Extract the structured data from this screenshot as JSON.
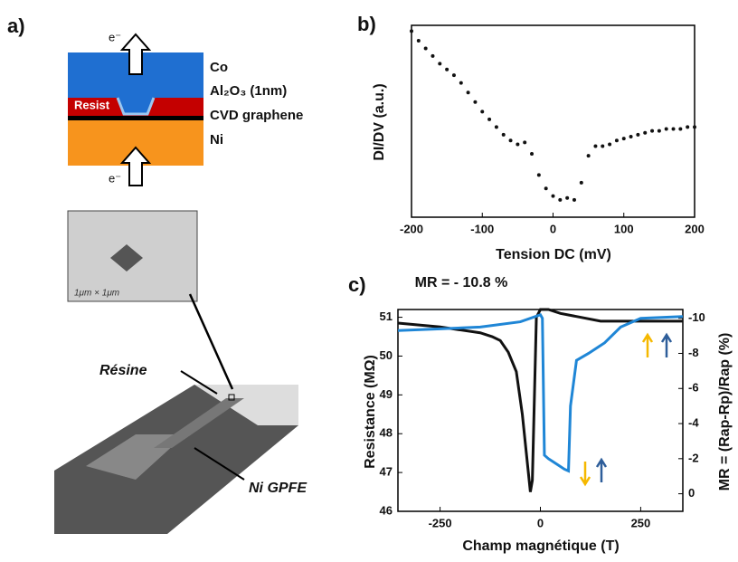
{
  "panel_a": {
    "label": "a)",
    "layers": {
      "co": "Co",
      "alox": "Al₂O₃ (1nm)",
      "resist": "Resist",
      "graphene": "CVD graphene",
      "ni": "Ni"
    },
    "electron_top": "e⁻",
    "electron_bottom": "e⁻",
    "sem_scale": "1μm × 1μm",
    "resine": "Résine",
    "ni_gpfe": "Ni GPFE"
  },
  "chart_data": [
    {
      "type": "scatter",
      "label": "b)",
      "x_label": "Tension DC (mV)",
      "y_label": "DI/DV (a.u.)",
      "xlim": [
        -200,
        200
      ],
      "xticks": [
        -200,
        -100,
        0,
        100,
        200
      ],
      "ylim": [
        0,
        1
      ],
      "series": [
        {
          "color": "#111111",
          "x": [
            -200,
            -190,
            -180,
            -170,
            -160,
            -150,
            -140,
            -130,
            -120,
            -110,
            -100,
            -90,
            -80,
            -70,
            -60,
            -50,
            -40,
            -30,
            -20,
            -10,
            0,
            10,
            20,
            30,
            40,
            50,
            60,
            70,
            80,
            90,
            100,
            110,
            120,
            130,
            140,
            150,
            160,
            170,
            180,
            190,
            200
          ],
          "values": [
            0.97,
            0.92,
            0.88,
            0.84,
            0.8,
            0.77,
            0.74,
            0.7,
            0.65,
            0.6,
            0.55,
            0.51,
            0.47,
            0.43,
            0.4,
            0.38,
            0.39,
            0.33,
            0.22,
            0.15,
            0.11,
            0.09,
            0.1,
            0.09,
            0.18,
            0.32,
            0.37,
            0.37,
            0.38,
            0.4,
            0.41,
            0.42,
            0.43,
            0.44,
            0.45,
            0.45,
            0.46,
            0.46,
            0.46,
            0.47,
            0.47
          ]
        }
      ]
    },
    {
      "type": "line",
      "label": "c)",
      "title": "MR = - 10.8 %",
      "x_label": "Champ magnétique (T)",
      "y_label": "Resistance (MΩ)",
      "y2_label": "MR = (Rap-Rp)/Rap (%)",
      "xlim": [
        -355,
        355
      ],
      "xticks": [
        -250,
        0,
        250
      ],
      "ylim": [
        46,
        51.2
      ],
      "yticks": [
        46,
        47,
        48,
        49,
        50,
        51
      ],
      "y2lim": [
        1,
        -10.5
      ],
      "y2ticks": [
        0,
        -2,
        -4,
        -6,
        -8,
        -10
      ],
      "series": [
        {
          "color": "#111111",
          "x": [
            -355,
            -250,
            -150,
            -120,
            -100,
            -80,
            -60,
            -45,
            -35,
            -25,
            -20,
            -10,
            0,
            20,
            50,
            100,
            150,
            250,
            355
          ],
          "values": [
            50.85,
            50.75,
            50.6,
            50.5,
            50.4,
            50.1,
            49.6,
            48.5,
            47.5,
            46.5,
            46.8,
            51.0,
            51.2,
            51.2,
            51.1,
            51.0,
            50.9,
            50.9,
            50.9
          ]
        },
        {
          "color": "#1f86d6",
          "axis": "y2",
          "x": [
            -355,
            -250,
            -150,
            -50,
            0,
            5,
            10,
            20,
            40,
            60,
            70,
            75,
            90,
            120,
            160,
            200,
            250,
            355
          ],
          "values": [
            -9.3,
            -9.4,
            -9.5,
            -9.8,
            -10.2,
            -10,
            -2.2,
            -2.0,
            -1.7,
            -1.4,
            -1.3,
            -5,
            -7.6,
            -8,
            -8.6,
            -9.5,
            -10,
            -10.1
          ]
        }
      ]
    }
  ]
}
